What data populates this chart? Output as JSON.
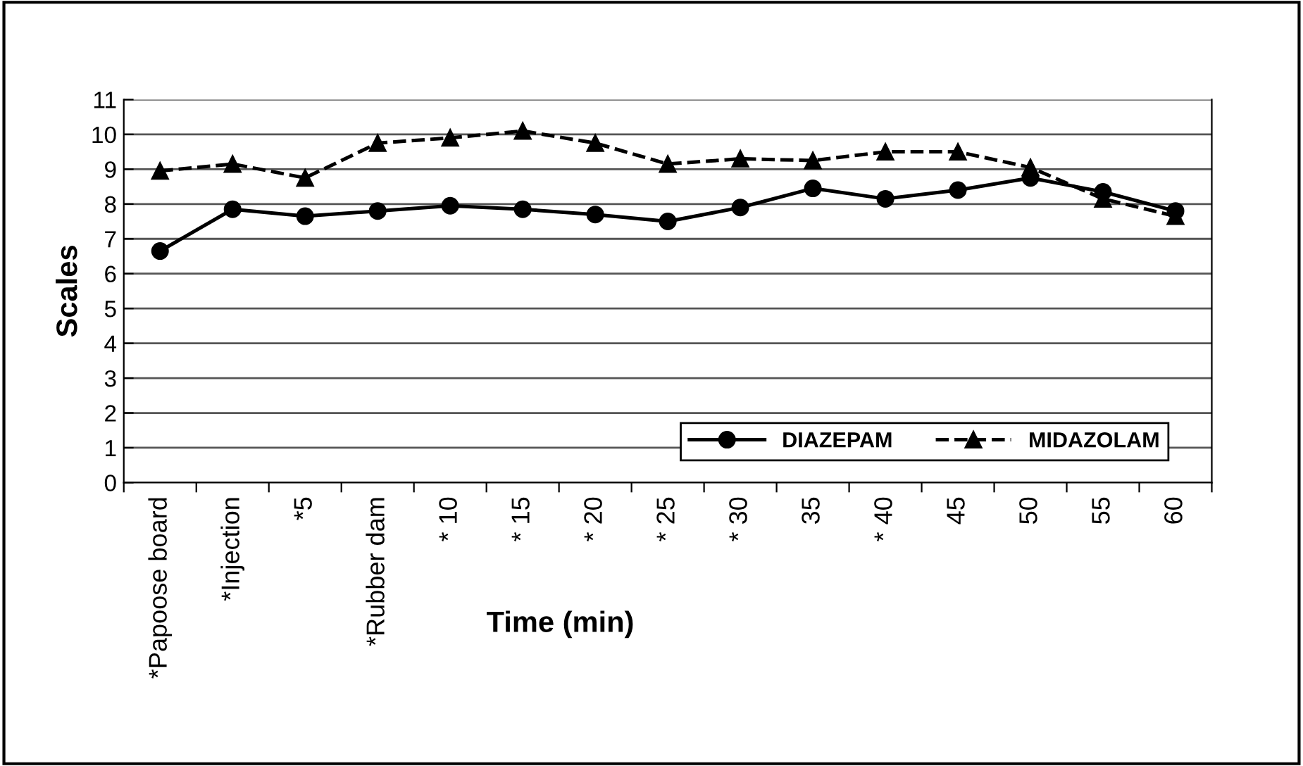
{
  "chart_data": {
    "type": "line",
    "xlabel": "Time (min)",
    "ylabel": "Scales",
    "categories": [
      "*Papoose board",
      "*Injection",
      "*5",
      "*Rubber dam",
      "* 10",
      "* 15",
      "* 20",
      "* 25",
      "* 30",
      "35",
      "* 40",
      "45",
      "50",
      "55",
      "60"
    ],
    "series": [
      {
        "name": "DIAZEPAM",
        "color": "#000000",
        "marker": "circle",
        "line_style": "solid",
        "values": [
          6.65,
          7.85,
          7.65,
          7.8,
          7.95,
          7.85,
          7.7,
          7.5,
          7.9,
          8.45,
          8.15,
          8.4,
          8.75,
          8.35,
          7.8
        ]
      },
      {
        "name": "MIDAZOLAM",
        "color": "#000000",
        "marker": "triangle",
        "line_style": "dashed",
        "values": [
          8.95,
          9.15,
          8.75,
          9.75,
          9.9,
          10.1,
          9.75,
          9.15,
          9.3,
          9.25,
          9.5,
          9.5,
          9.05,
          8.15,
          7.65
        ]
      }
    ],
    "ylim": [
      0,
      11
    ],
    "yticks": [
      0,
      1,
      2,
      3,
      4,
      5,
      6,
      7,
      8,
      9,
      10,
      11
    ],
    "grid": "y",
    "legend": "bottom right"
  }
}
